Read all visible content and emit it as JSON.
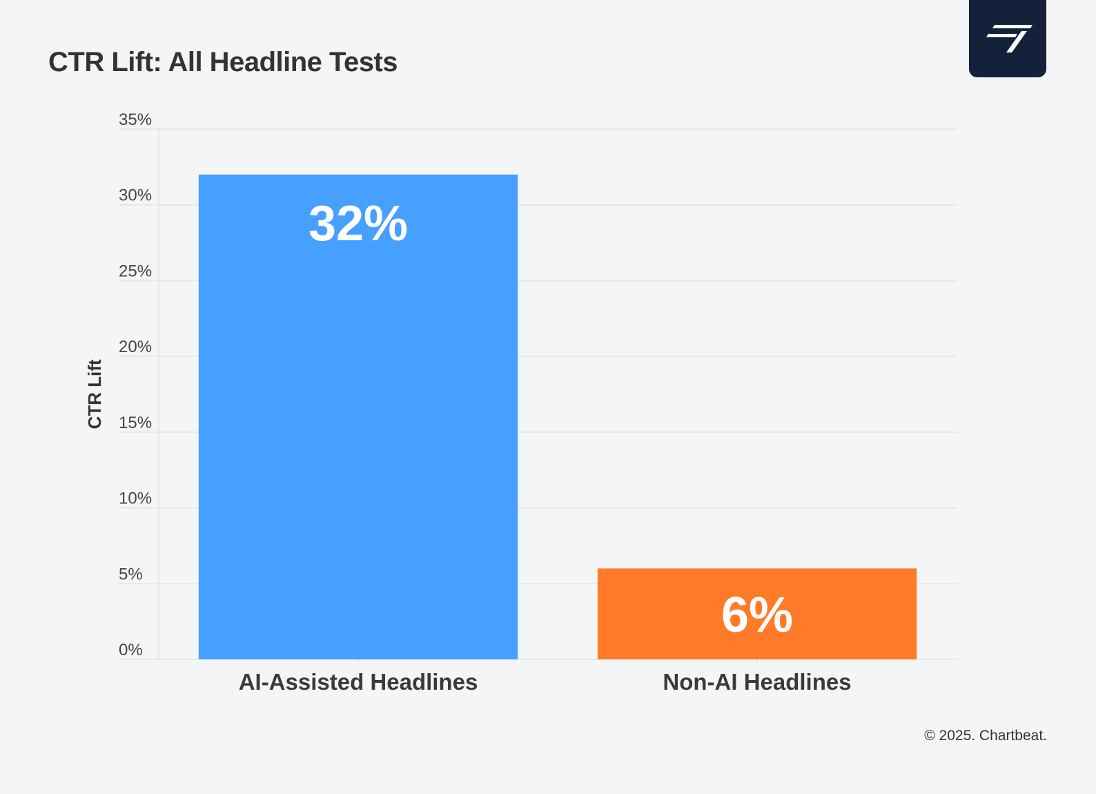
{
  "header": {
    "title": "CTR Lift: All Headline Tests"
  },
  "brand": {
    "logo_icon": "chartbeat-logo-icon",
    "badge_color": "#13223a"
  },
  "footer": {
    "copyright": "© 2025. Chartbeat."
  },
  "chart_data": {
    "type": "bar",
    "title": "CTR Lift: All Headline Tests",
    "xlabel": "",
    "ylabel": "CTR Lift",
    "categories": [
      "AI-Assisted Headlines",
      "Non-AI Headlines"
    ],
    "values": [
      32,
      6
    ],
    "value_labels": [
      "32%",
      "6%"
    ],
    "colors": [
      "#47a0ff",
      "#ff7b29"
    ],
    "ylim": [
      0,
      35
    ],
    "yticks": [
      0,
      5,
      10,
      15,
      20,
      25,
      30,
      35
    ],
    "ytick_labels": [
      "0%",
      "5%",
      "10%",
      "15%",
      "20%",
      "25%",
      "30%",
      "35%"
    ],
    "grid": true,
    "legend": "none"
  }
}
